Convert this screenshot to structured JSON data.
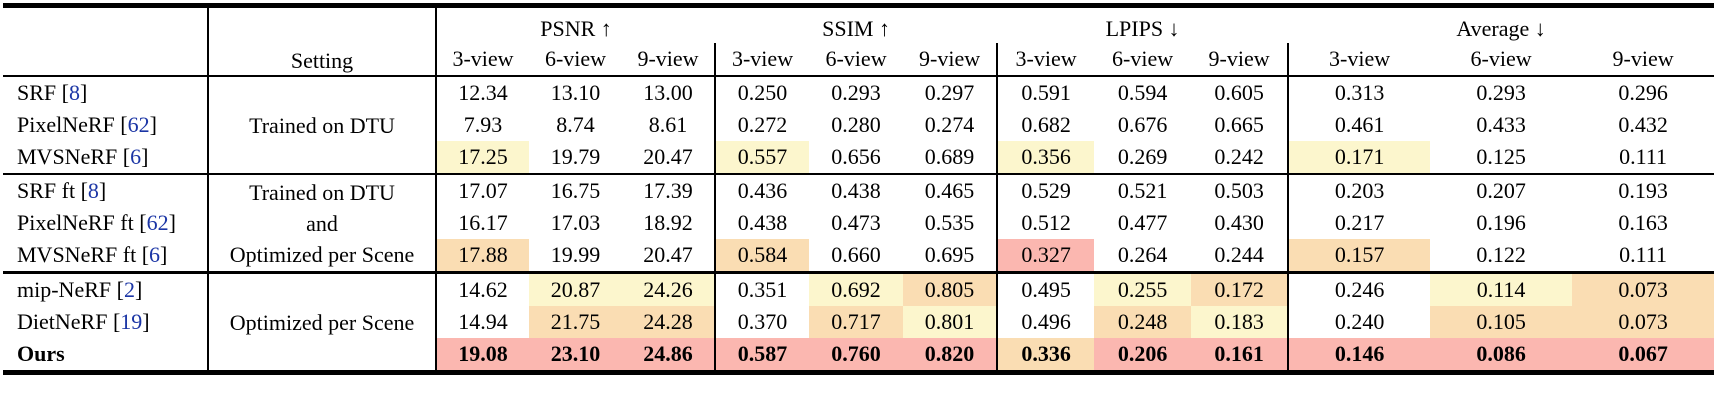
{
  "table": {
    "header": {
      "corner_label": "",
      "setting_label": "Setting",
      "metric_groups": [
        "PSNR ↑",
        "SSIM ↑",
        "LPIPS ↓",
        "Average ↓"
      ],
      "view_cols": [
        "3-view",
        "6-view",
        "9-view"
      ]
    },
    "format": {
      "bracket_open": "[",
      "bracket_close": "]"
    },
    "colors": {
      "best": "#FBB7B0",
      "second": "#FADDB3",
      "third": "#FCF6CD",
      "citation_blue": "#1B35A5"
    },
    "groups": [
      {
        "setting_lines": [
          "Trained on DTU"
        ],
        "rows": [
          {
            "method": "SRF",
            "cite": "8",
            "bold": false,
            "values": [
              "12.34",
              "13.10",
              "13.00",
              "0.250",
              "0.293",
              "0.297",
              "0.591",
              "0.594",
              "0.605",
              "0.313",
              "0.293",
              "0.296"
            ],
            "highlights": [
              null,
              null,
              null,
              null,
              null,
              null,
              null,
              null,
              null,
              null,
              null,
              null
            ]
          },
          {
            "method": "PixelNeRF",
            "cite": "62",
            "bold": false,
            "values": [
              "7.93",
              "8.74",
              "8.61",
              "0.272",
              "0.280",
              "0.274",
              "0.682",
              "0.676",
              "0.665",
              "0.461",
              "0.433",
              "0.432"
            ],
            "highlights": [
              null,
              null,
              null,
              null,
              null,
              null,
              null,
              null,
              null,
              null,
              null,
              null
            ]
          },
          {
            "method": "MVSNeRF",
            "cite": "6",
            "bold": false,
            "values": [
              "17.25",
              "19.79",
              "20.47",
              "0.557",
              "0.656",
              "0.689",
              "0.356",
              "0.269",
              "0.242",
              "0.171",
              "0.125",
              "0.111"
            ],
            "highlights": [
              "third",
              null,
              null,
              "third",
              null,
              null,
              "third",
              null,
              null,
              "third",
              null,
              null
            ]
          }
        ]
      },
      {
        "setting_lines": [
          "Trained on DTU",
          "and",
          "Optimized per Scene"
        ],
        "rows": [
          {
            "method": "SRF ft",
            "cite": "8",
            "bold": false,
            "values": [
              "17.07",
              "16.75",
              "17.39",
              "0.436",
              "0.438",
              "0.465",
              "0.529",
              "0.521",
              "0.503",
              "0.203",
              "0.207",
              "0.193"
            ],
            "highlights": [
              null,
              null,
              null,
              null,
              null,
              null,
              null,
              null,
              null,
              null,
              null,
              null
            ]
          },
          {
            "method": "PixelNeRF ft",
            "cite": "62",
            "bold": false,
            "values": [
              "16.17",
              "17.03",
              "18.92",
              "0.438",
              "0.473",
              "0.535",
              "0.512",
              "0.477",
              "0.430",
              "0.217",
              "0.196",
              "0.163"
            ],
            "highlights": [
              null,
              null,
              null,
              null,
              null,
              null,
              null,
              null,
              null,
              null,
              null,
              null
            ]
          },
          {
            "method": "MVSNeRF ft",
            "cite": "6",
            "bold": false,
            "values": [
              "17.88",
              "19.99",
              "20.47",
              "0.584",
              "0.660",
              "0.695",
              "0.327",
              "0.264",
              "0.244",
              "0.157",
              "0.122",
              "0.111"
            ],
            "highlights": [
              "second",
              null,
              null,
              "second",
              null,
              null,
              "best",
              null,
              null,
              "second",
              null,
              null
            ]
          }
        ]
      },
      {
        "setting_lines": [
          "Optimized per Scene"
        ],
        "rows": [
          {
            "method": "mip-NeRF",
            "cite": "2",
            "bold": false,
            "values": [
              "14.62",
              "20.87",
              "24.26",
              "0.351",
              "0.692",
              "0.805",
              "0.495",
              "0.255",
              "0.172",
              "0.246",
              "0.114",
              "0.073"
            ],
            "highlights": [
              null,
              "third",
              "third",
              null,
              "third",
              "second",
              null,
              "third",
              "second",
              null,
              "third",
              "second"
            ]
          },
          {
            "method": "DietNeRF",
            "cite": "19",
            "bold": false,
            "values": [
              "14.94",
              "21.75",
              "24.28",
              "0.370",
              "0.717",
              "0.801",
              "0.496",
              "0.248",
              "0.183",
              "0.240",
              "0.105",
              "0.073"
            ],
            "highlights": [
              null,
              "second",
              "second",
              null,
              "second",
              "third",
              null,
              "second",
              "third",
              null,
              "second",
              "second"
            ]
          },
          {
            "method": "Ours",
            "cite": null,
            "bold": true,
            "values": [
              "19.08",
              "23.10",
              "24.86",
              "0.587",
              "0.760",
              "0.820",
              "0.336",
              "0.206",
              "0.161",
              "0.146",
              "0.086",
              "0.067"
            ],
            "highlights": [
              "best",
              "best",
              "best",
              "best",
              "best",
              "best",
              "second",
              "best",
              "best",
              "best",
              "best",
              "best"
            ]
          }
        ]
      }
    ]
  }
}
